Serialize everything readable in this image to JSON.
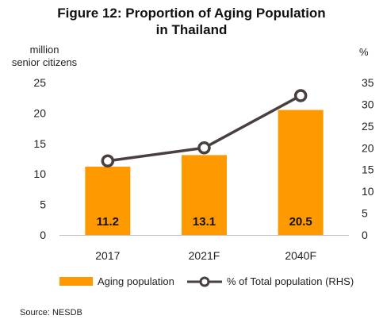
{
  "title_line1": "Figure 12: Proportion of Aging Population",
  "title_line2": "in Thailand",
  "source": "Source: NESDB",
  "chart_data": {
    "type": "bar",
    "categories": [
      "2017",
      "2021F",
      "2040F"
    ],
    "left_axis_label": [
      "million",
      "senior citizens"
    ],
    "right_axis_label": "%",
    "left_ylim": [
      0,
      25
    ],
    "right_ylim": [
      0,
      35
    ],
    "left_ticks": [
      0,
      5,
      10,
      15,
      20,
      25
    ],
    "right_ticks": [
      0,
      5,
      10,
      15,
      20,
      25,
      30,
      35
    ],
    "series": [
      {
        "name": "Aging population",
        "type": "bar",
        "axis": "left",
        "color": "#FF9900",
        "values": [
          11.2,
          13.1,
          20.5
        ],
        "data_labels": [
          "11.2",
          "13.1",
          "20.5"
        ]
      },
      {
        "name": "% of Total population (RHS)",
        "type": "line",
        "axis": "right",
        "color": "#4A3F3F",
        "values": [
          17,
          20,
          32
        ]
      }
    ],
    "grid": false,
    "legend_position": "bottom"
  },
  "colors": {
    "bar": "#FF9900",
    "line": "#4A3F3F",
    "axis": "#BFBFBF"
  }
}
